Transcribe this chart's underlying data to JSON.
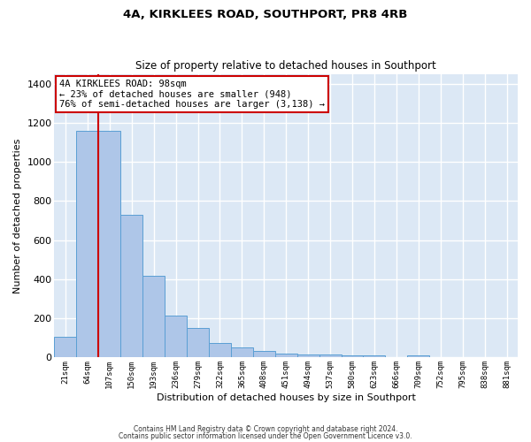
{
  "title": "4A, KIRKLEES ROAD, SOUTHPORT, PR8 4RB",
  "subtitle": "Size of property relative to detached houses in Southport",
  "xlabel": "Distribution of detached houses by size in Southport",
  "ylabel": "Number of detached properties",
  "categories": [
    "21sqm",
    "64sqm",
    "107sqm",
    "150sqm",
    "193sqm",
    "236sqm",
    "279sqm",
    "322sqm",
    "365sqm",
    "408sqm",
    "451sqm",
    "494sqm",
    "537sqm",
    "580sqm",
    "623sqm",
    "666sqm",
    "709sqm",
    "752sqm",
    "795sqm",
    "838sqm",
    "881sqm"
  ],
  "bar_values": [
    108,
    1160,
    1160,
    730,
    418,
    215,
    150,
    72,
    50,
    32,
    20,
    15,
    15,
    10,
    10,
    0,
    10,
    0,
    0,
    0,
    0
  ],
  "bar_color": "#aec6e8",
  "bar_edge_color": "#5a9fd4",
  "vline_position": 1.5,
  "vline_color": "#cc0000",
  "annotation_text": "4A KIRKLEES ROAD: 98sqm\n← 23% of detached houses are smaller (948)\n76% of semi-detached houses are larger (3,138) →",
  "annotation_box_color": "#ffffff",
  "annotation_box_edge": "#cc0000",
  "ylim": [
    0,
    1450
  ],
  "yticks": [
    0,
    200,
    400,
    600,
    800,
    1000,
    1200,
    1400
  ],
  "bg_color": "#dce8f5",
  "grid_color": "#ffffff",
  "footer1": "Contains HM Land Registry data © Crown copyright and database right 2024.",
  "footer2": "Contains public sector information licensed under the Open Government Licence v3.0."
}
